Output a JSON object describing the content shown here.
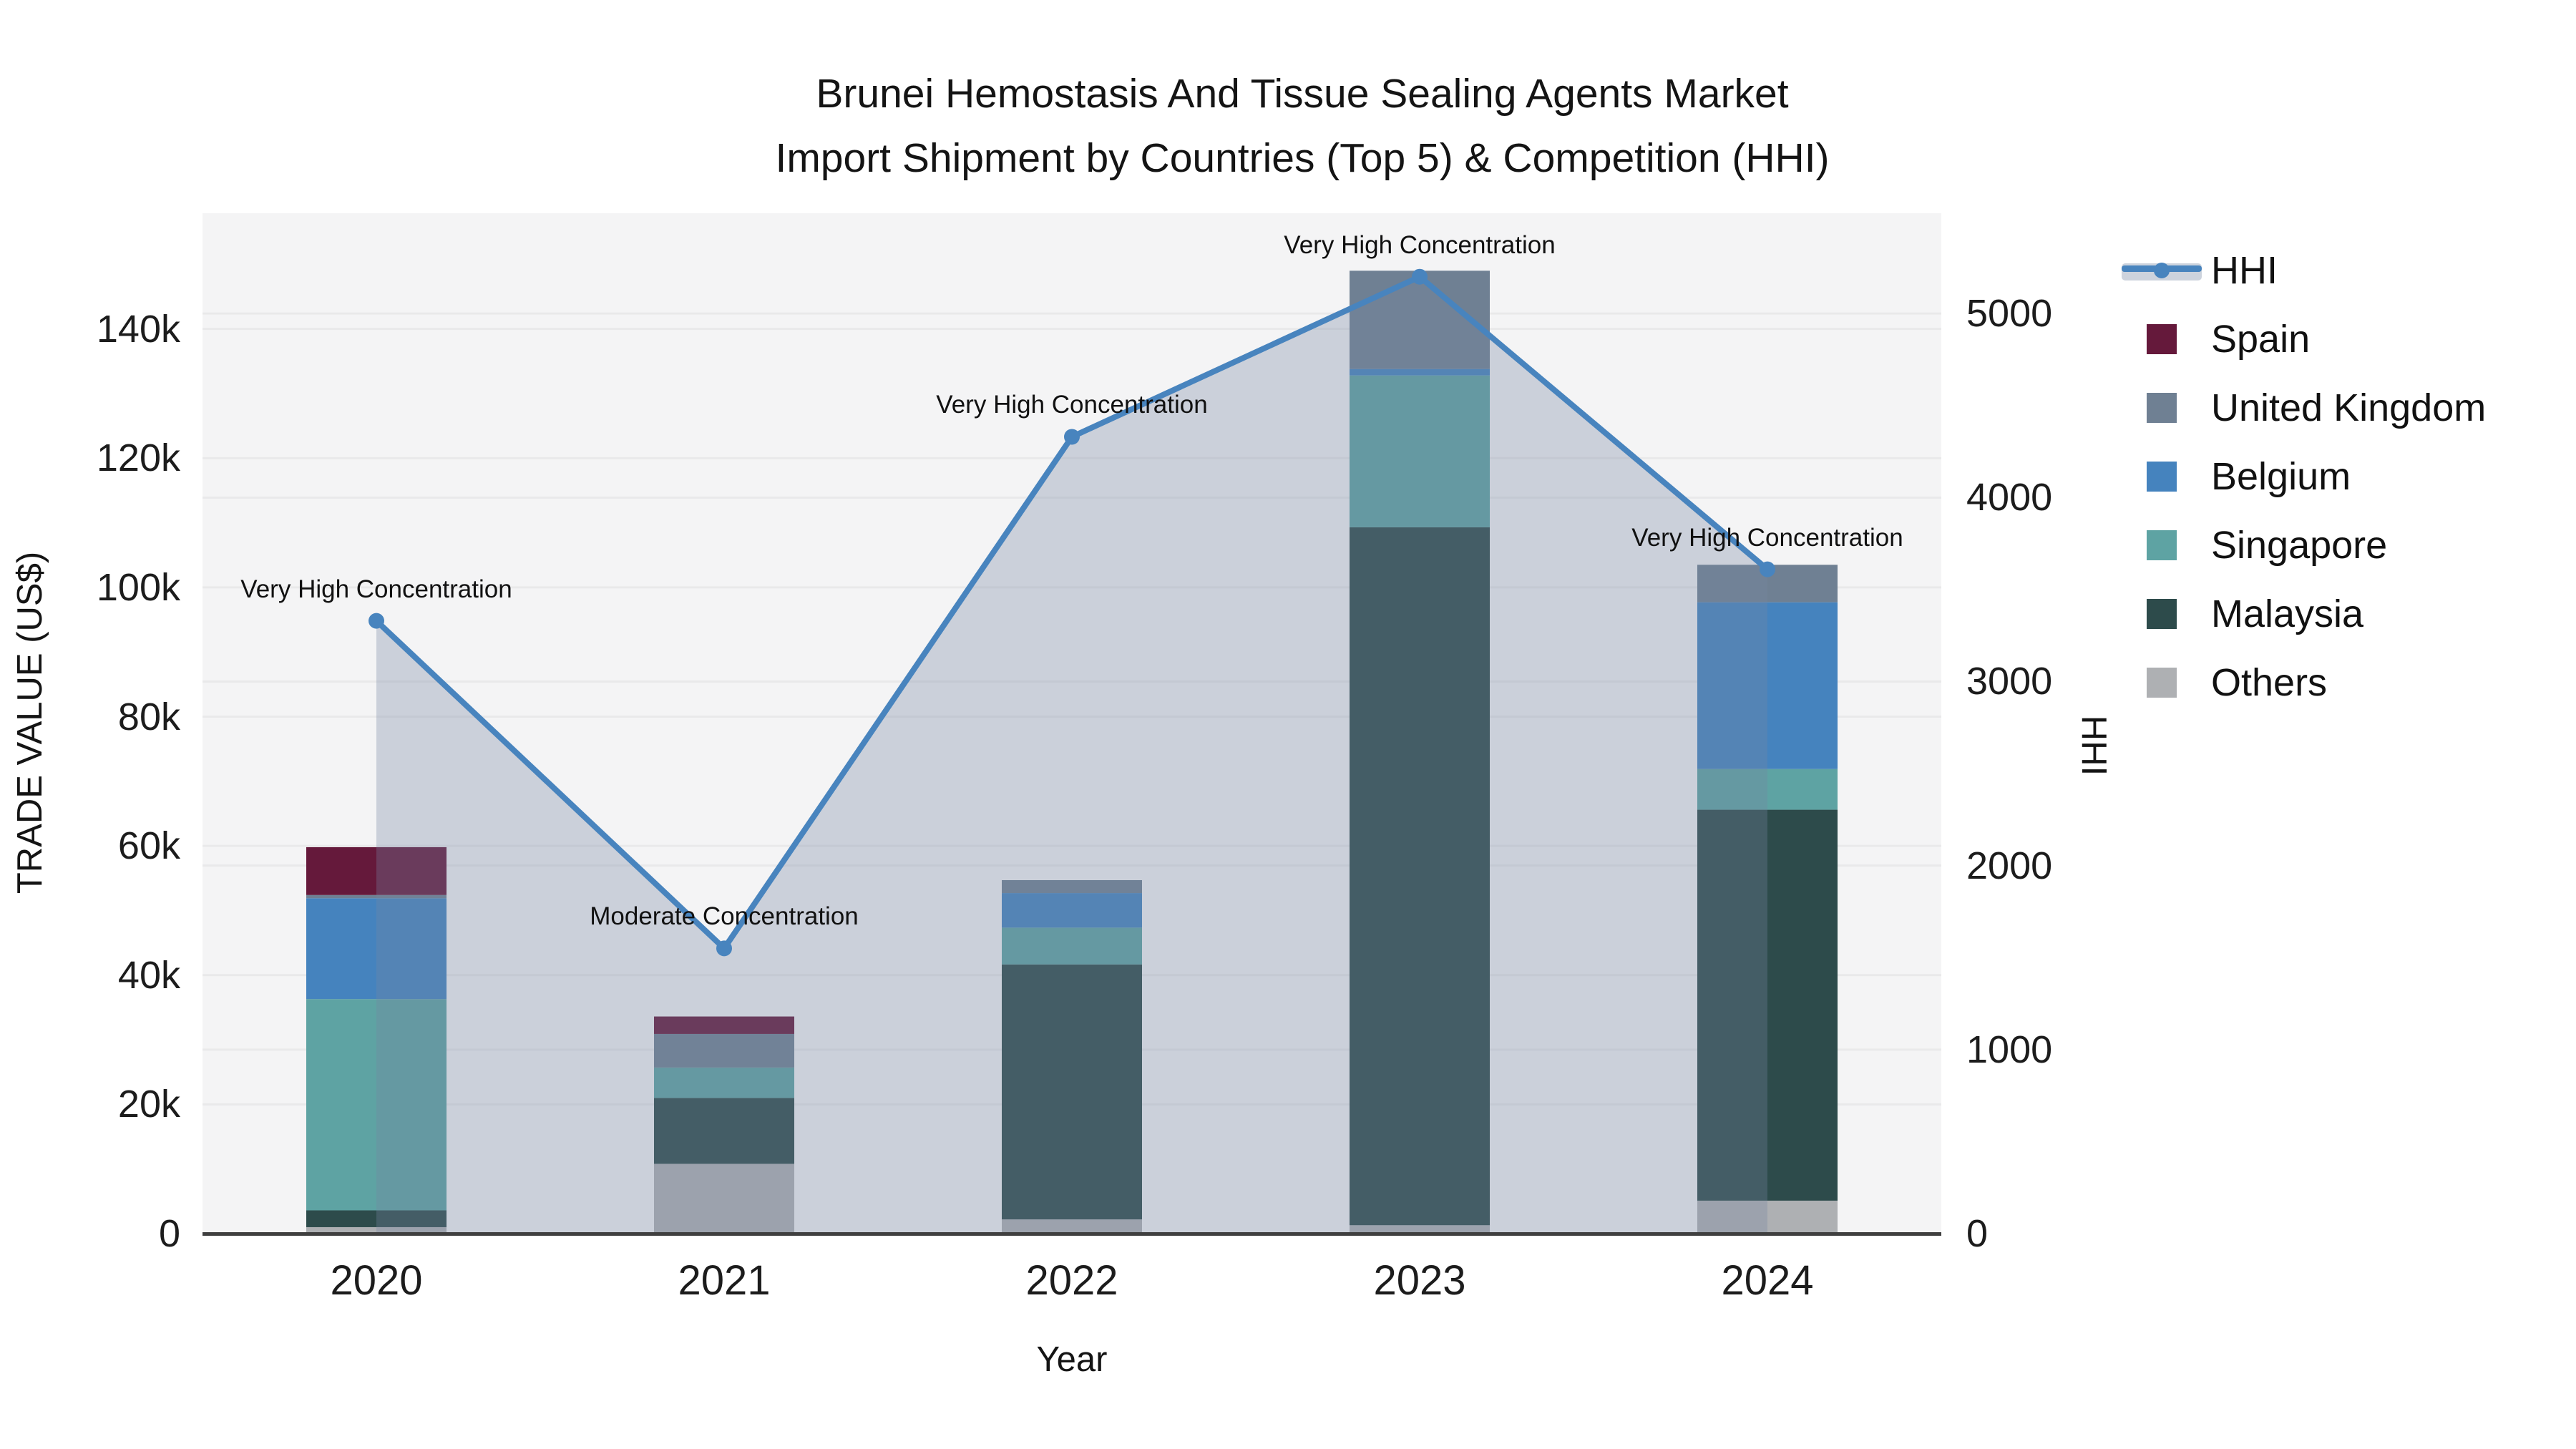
{
  "title": {
    "line1": "Brunei Hemostasis And Tissue Sealing Agents Market",
    "line2": "Import Shipment by Countries (Top 5) & Competition (HHI)"
  },
  "axes": {
    "x_title": "Year",
    "y_left_title": "TRADE VALUE (US$)",
    "y_right_title": "HHI",
    "y_left_tick_labels": [
      "0",
      "20k",
      "40k",
      "60k",
      "80k",
      "100k",
      "120k",
      "140k"
    ],
    "y_right_tick_labels": [
      "0",
      "1000",
      "2000",
      "3000",
      "4000",
      "5000"
    ]
  },
  "legend": {
    "items": [
      {
        "label": "HHI",
        "type": "line",
        "color": "#4884BE",
        "band_color": "#CDD3DD"
      },
      {
        "label": "Spain",
        "type": "swatch",
        "color": "#65193B"
      },
      {
        "label": "United Kingdom",
        "type": "swatch",
        "color": "#6F8093"
      },
      {
        "label": "Belgium",
        "type": "swatch",
        "color": "#4583BE"
      },
      {
        "label": "Singapore",
        "type": "swatch",
        "color": "#5EA3A3"
      },
      {
        "label": "Malaysia",
        "type": "swatch",
        "color": "#2D4B4B"
      },
      {
        "label": "Others",
        "type": "swatch",
        "color": "#AEB0B3"
      }
    ]
  },
  "chart_data": {
    "type": "bar",
    "stacked": true,
    "title": "Brunei Hemostasis And Tissue Sealing Agents Market Import Shipment by Countries (Top 5) & Competition (HHI)",
    "xlabel": "Year",
    "ylabel": "TRADE VALUE (US$)",
    "y2label": "HHI",
    "categories": [
      "2020",
      "2021",
      "2022",
      "2023",
      "2024"
    ],
    "series": [
      {
        "name": "Others",
        "color": "#AEB0B3",
        "values": [
          1000,
          10800,
          2200,
          1300,
          5100
        ]
      },
      {
        "name": "Malaysia",
        "color": "#2D4B4B",
        "values": [
          2600,
          10200,
          39450,
          108000,
          60500
        ]
      },
      {
        "name": "Singapore",
        "color": "#5EA3A3",
        "values": [
          32700,
          4700,
          5700,
          23500,
          6300
        ]
      },
      {
        "name": "Belgium",
        "color": "#4583BE",
        "values": [
          15600,
          0,
          5350,
          1000,
          25800
        ]
      },
      {
        "name": "United Kingdom",
        "color": "#6F8093",
        "values": [
          500,
          5200,
          2000,
          15200,
          5800
        ]
      },
      {
        "name": "Spain",
        "color": "#65193B",
        "values": [
          7400,
          2700,
          0,
          0,
          0
        ]
      }
    ],
    "line_series": {
      "name": "HHI",
      "axis": "right",
      "color": "#4884BE",
      "area_fill": "rgba(117,135,163,0.32)",
      "values": [
        3330,
        1550,
        4330,
        5200,
        3610
      ]
    },
    "annotations": [
      "Very High Concentration",
      "Moderate Concentration",
      "Very High Concentration",
      "Very High Concentration",
      "Very High Concentration"
    ],
    "ylim": [
      0,
      157900
    ],
    "y2lim": [
      0,
      5545
    ],
    "ytick_values": [
      0,
      20000,
      40000,
      60000,
      80000,
      100000,
      120000,
      140000
    ],
    "y2tick_values": [
      0,
      1000,
      2000,
      3000,
      4000,
      5000
    ],
    "grid": true,
    "legend_position": "right",
    "plot_bg": "#F4F4F5",
    "grid_color": "#E9E9EA",
    "axis_line_color": "#3F3F3F"
  }
}
